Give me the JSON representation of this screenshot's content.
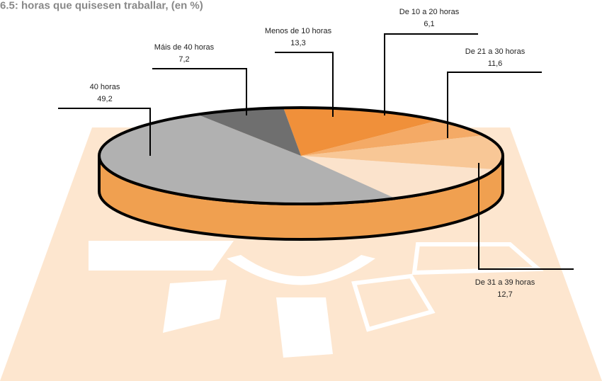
{
  "chart_data": {
    "type": "pie",
    "title": "6.5: horas que quisesen traballar, (en %)",
    "categories": [
      "Menos de 10 horas",
      "De 10 a 20 horas",
      "De 21 a 30 horas",
      "De 31 a 39 horas",
      "40 horas",
      "Máis de 40 horas"
    ],
    "values": [
      13.3,
      6.1,
      11.6,
      12.7,
      49.2,
      7.2
    ],
    "value_labels": [
      "13,3",
      "6,1",
      "11,6",
      "12,7",
      "49,2",
      "7,2"
    ],
    "colors": [
      "#f0903a",
      "#f4aa66",
      "#f8c796",
      "#fbe3cc",
      "#b1b1b1",
      "#6f6f6f"
    ]
  }
}
